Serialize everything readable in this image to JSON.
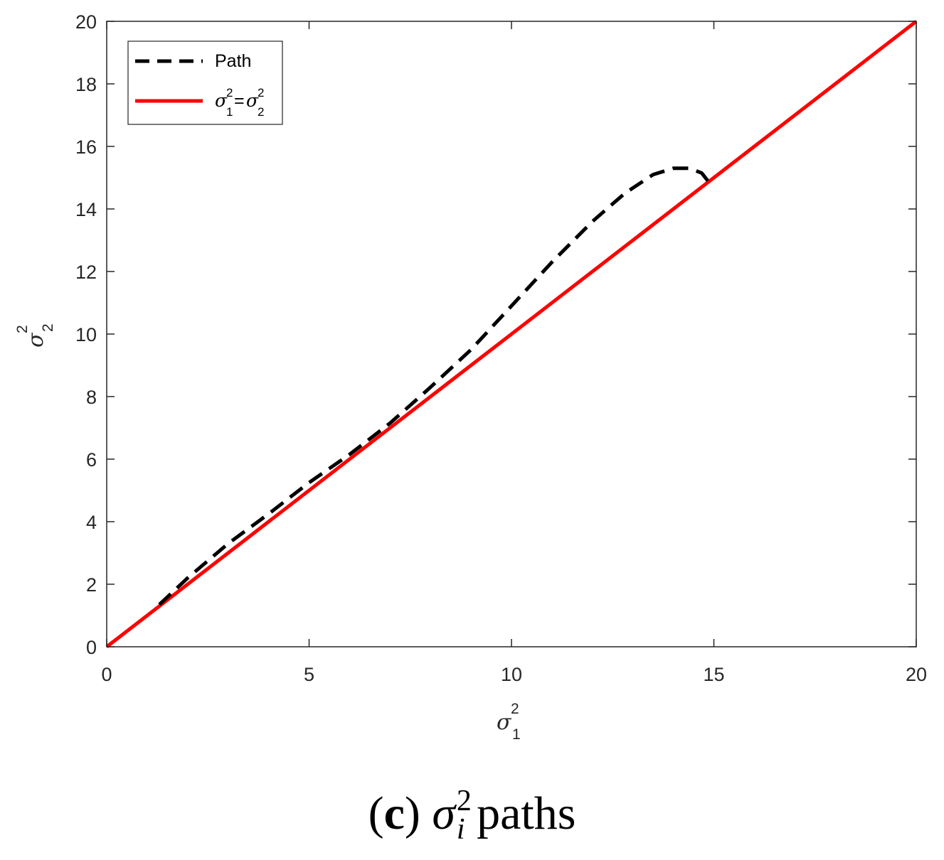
{
  "chart_data": {
    "type": "line",
    "xlabel": {
      "symbol": "σ",
      "superscript": "2",
      "subscript": "1"
    },
    "ylabel": {
      "symbol": "σ",
      "superscript": "2",
      "subscript": "2"
    },
    "xlim": [
      0,
      20
    ],
    "ylim": [
      0,
      20
    ],
    "xticks": [
      "0",
      "5",
      "10",
      "15",
      "20"
    ],
    "yticks": [
      "0",
      "2",
      "4",
      "6",
      "8",
      "10",
      "12",
      "14",
      "16",
      "18",
      "20"
    ],
    "grid": false,
    "legend_position": "top-left",
    "series": [
      {
        "name": "Path",
        "style": "dashed",
        "color": "#000000",
        "x": [
          1.3,
          2.0,
          3.0,
          4.0,
          5.0,
          6.0,
          7.0,
          8.0,
          9.0,
          10.0,
          11.0,
          12.0,
          12.8,
          13.5,
          14.0,
          14.4,
          14.7,
          14.85
        ],
        "y": [
          1.35,
          2.2,
          3.3,
          4.25,
          5.25,
          6.15,
          7.15,
          8.3,
          9.5,
          10.9,
          12.3,
          13.6,
          14.5,
          15.1,
          15.3,
          15.3,
          15.15,
          14.9
        ]
      },
      {
        "name_parts": {
          "left_symbol": "σ",
          "left_sub": "1",
          "left_sup": "2",
          "equals": "=",
          "right_symbol": "σ",
          "right_sub": "2",
          "right_sup": "2"
        },
        "style": "solid",
        "color": "#ff0000",
        "x": [
          0,
          20
        ],
        "y": [
          0,
          20
        ]
      }
    ]
  },
  "caption": {
    "panel": "(c)",
    "symbol": "σ",
    "superscript": "2",
    "subscript": "i",
    "text": "paths"
  }
}
